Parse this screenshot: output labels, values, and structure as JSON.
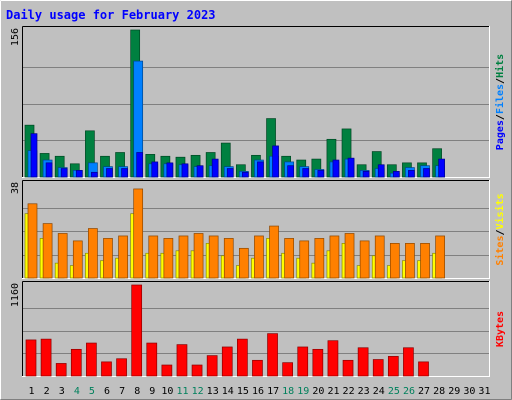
{
  "colors": {
    "background": "#c0c0c0",
    "plot_background": "#c0c0c0",
    "grid": "#808080",
    "title": "#0000ff",
    "hits": "#008040",
    "files": "#0080ff",
    "pages": "#0000ff",
    "visits": "#ffff00",
    "sites": "#ff8000",
    "kbytes": "#ff0000",
    "weekend_label": "#00805c",
    "weekday_label": "#000000"
  },
  "chart_data": {
    "title": "Daily usage for February 2023",
    "type": "bar",
    "x": [
      "1",
      "2",
      "3",
      "4",
      "5",
      "6",
      "7",
      "8",
      "9",
      "10",
      "11",
      "12",
      "13",
      "14",
      "15",
      "16",
      "17",
      "18",
      "19",
      "20",
      "21",
      "22",
      "23",
      "24",
      "25",
      "26",
      "27",
      "28",
      "29",
      "30",
      "31"
    ],
    "weekend_days": [
      "4",
      "5",
      "11",
      "12",
      "18",
      "19",
      "25",
      "26"
    ],
    "panels": [
      {
        "name": "hits_files_pages",
        "ymax_label": "156",
        "ymax": 156,
        "legend": [
          {
            "label": "Hits",
            "color_key": "hits"
          },
          {
            "label": "Files",
            "color_key": "files"
          },
          {
            "label": "Pages",
            "color_key": "pages"
          }
        ],
        "series": [
          {
            "name": "Hits",
            "color_key": "hits",
            "values": [
              55,
              25,
              22,
              14,
              49,
              22,
              26,
              156,
              24,
              22,
              21,
              23,
              26,
              36,
              13,
              23,
              62,
              22,
              18,
              19,
              40,
              51,
              13,
              27,
              13,
              15,
              15,
              30
            ]
          },
          {
            "name": "Pages",
            "color_key": "pages",
            "values": [
              46,
              15,
              9,
              7,
              5,
              9,
              9,
              26,
              16,
              15,
              14,
              12,
              19,
              9,
              5,
              16,
              33,
              12,
              9,
              7,
              18,
              20,
              6,
              13,
              6,
              7,
              9,
              19
            ]
          },
          {
            "name": "Files",
            "color_key": "files",
            "values": [
              28,
              18,
              10,
              7,
              15,
              11,
              11,
              123,
              14,
              14,
              13,
              11,
              12,
              11,
              6,
              18,
              22,
              16,
              11,
              8,
              16,
              19,
              7,
              9,
              4,
              10,
              12,
              12
            ]
          }
        ]
      },
      {
        "name": "visits_sites",
        "ymax_label": "38",
        "ymax": 38,
        "legend": [
          {
            "label": "Visits",
            "color_key": "visits"
          },
          {
            "label": "Sites",
            "color_key": "sites"
          }
        ],
        "series": [
          {
            "name": "Visits",
            "color_key": "visits",
            "values": [
              26,
              16,
              6,
              5,
              10,
              7,
              8,
              26,
              10,
              10,
              11,
              11,
              14,
              9,
              5,
              8,
              16,
              10,
              8,
              6,
              11,
              14,
              5,
              9,
              5,
              7,
              7,
              10
            ]
          },
          {
            "name": "Sites",
            "color_key": "sites",
            "values": [
              30,
              22,
              18,
              15,
              20,
              16,
              17,
              36,
              17,
              16,
              17,
              18,
              17,
              16,
              12,
              17,
              21,
              16,
              15,
              16,
              17,
              18,
              15,
              17,
              14,
              14,
              14,
              17
            ]
          }
        ]
      },
      {
        "name": "kbytes",
        "ymax_label": "1160",
        "ymax": 1160,
        "legend": [
          {
            "label": "KBytes",
            "color_key": "kbytes"
          }
        ],
        "series": [
          {
            "name": "KBytes",
            "color_key": "kbytes",
            "values": [
              460,
              470,
              160,
              340,
              420,
              180,
              220,
              1160,
              420,
              140,
              400,
              140,
              260,
              370,
              470,
              200,
              540,
              170,
              370,
              340,
              450,
              200,
              360,
              210,
              250,
              360,
              180,
              0
            ]
          }
        ]
      }
    ]
  }
}
